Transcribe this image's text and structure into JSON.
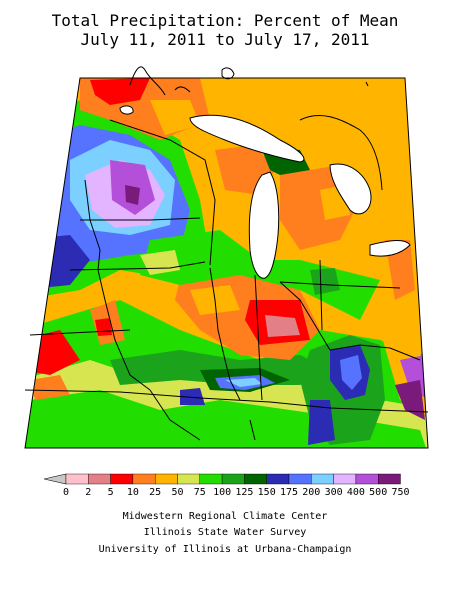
{
  "title": {
    "line1": "Total Precipitation: Percent of Mean",
    "line2": "July 11, 2011 to July 17, 2011"
  },
  "legend": {
    "labels": [
      "0",
      "2",
      "5",
      "10",
      "25",
      "50",
      "75",
      "100",
      "125",
      "150",
      "175",
      "200",
      "300",
      "400",
      "500",
      "750"
    ],
    "colors": [
      "#ffc0cb",
      "#e37f86",
      "#ff0000",
      "#ff7f1e",
      "#ffb400",
      "#d7e650",
      "#22dd00",
      "#1ba41b",
      "#006400",
      "#2b2bb4",
      "#5573ff",
      "#7cd0ff",
      "#e3b4ff",
      "#b34fd8",
      "#7a1a7a"
    ]
  },
  "credits": {
    "line1": "Midwestern Regional Climate Center",
    "line2": "Illinois State Water Survey",
    "line3": "University of Illinois at Urbana-Champaign"
  }
}
